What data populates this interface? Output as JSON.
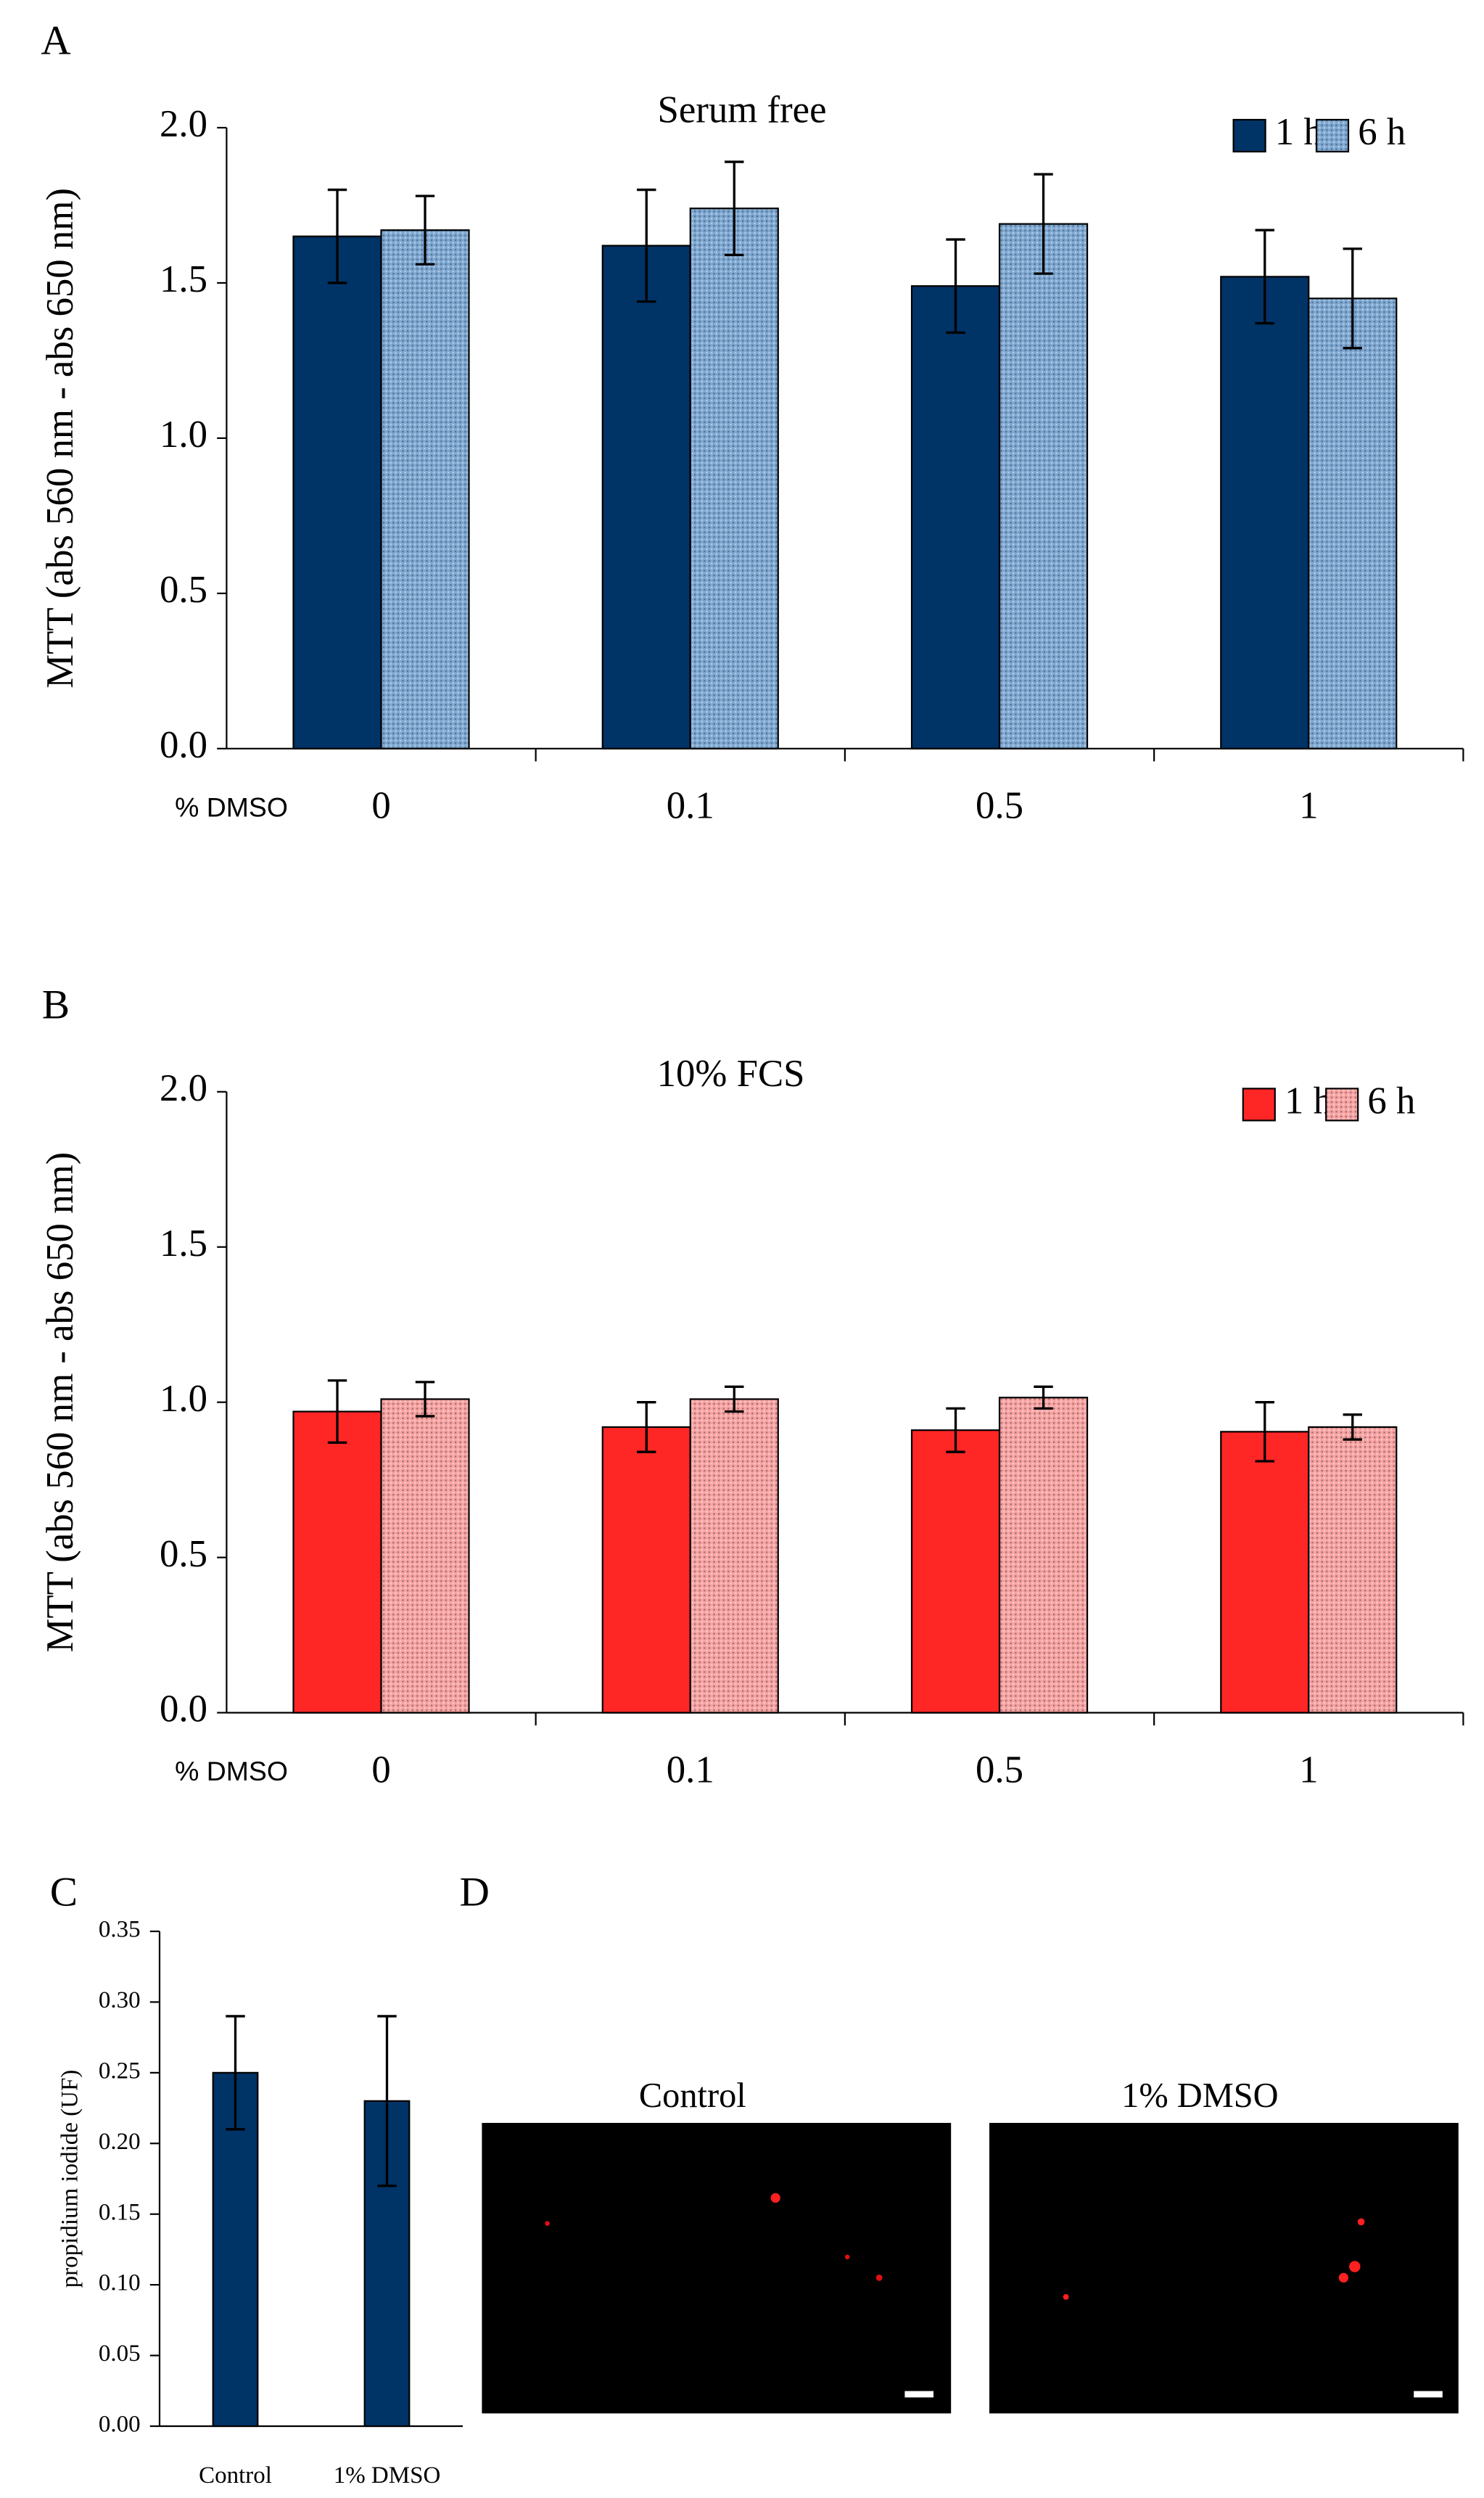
{
  "chart_data": [
    {
      "type": "bar",
      "label": "A",
      "title": "Serum free",
      "ylabel": "MTT (abs 560 nm - abs 650 nm)",
      "xlabel": "% DMSO",
      "categories": [
        "0",
        "0.1",
        "0.5",
        "1"
      ],
      "series": [
        {
          "name": "1 h",
          "color": "#003366",
          "values": [
            1.65,
            1.62,
            1.49,
            1.52
          ],
          "errors": [
            0.15,
            0.18,
            0.15,
            0.15
          ]
        },
        {
          "name": "6 h",
          "color": "#7ea8d2",
          "pattern": "dots",
          "values": [
            1.67,
            1.74,
            1.69,
            1.45
          ],
          "errors": [
            0.11,
            0.15,
            0.16,
            0.16
          ]
        }
      ],
      "ylim": [
        0,
        2
      ],
      "yticks": [
        {
          "value": 0,
          "label": "0.0"
        },
        {
          "value": 0.5,
          "label": "0.5"
        },
        {
          "value": 1,
          "label": "1.0"
        },
        {
          "value": 1.5,
          "label": "1.5"
        },
        {
          "value": 2,
          "label": "2.0"
        }
      ],
      "legend": "upper right",
      "grid": false
    },
    {
      "type": "bar",
      "label": "B",
      "title": "10% FCS",
      "ylabel": "MTT (abs 560 nm - abs 650 nm)",
      "xlabel": "% DMSO",
      "categories": [
        "0",
        "0.1",
        "0.5",
        "1"
      ],
      "series": [
        {
          "name": "1 h",
          "color": "#ff2626",
          "values": [
            0.97,
            0.92,
            0.91,
            0.905
          ],
          "errors": [
            0.1,
            0.08,
            0.07,
            0.095
          ]
        },
        {
          "name": "6 h",
          "color": "#f7a3a3",
          "pattern": "dots",
          "values": [
            1.01,
            1.01,
            1.015,
            0.92
          ],
          "errors": [
            0.055,
            0.04,
            0.035,
            0.04
          ]
        }
      ],
      "ylim": [
        0,
        2
      ],
      "yticks": [
        {
          "value": 0,
          "label": "0.0"
        },
        {
          "value": 0.5,
          "label": "0.5"
        },
        {
          "value": 1,
          "label": "1.0"
        },
        {
          "value": 1.5,
          "label": "1.5"
        },
        {
          "value": 2,
          "label": "2.0"
        }
      ],
      "legend": "upper right",
      "grid": false
    },
    {
      "type": "bar",
      "label": "C",
      "ylabel": "propidium iodide (UF)",
      "categories": [
        "Control",
        "1% DMSO"
      ],
      "series": [
        {
          "color": "#003366",
          "values": [
            0.25,
            0.23
          ],
          "errors": [
            0.04,
            0.06
          ]
        }
      ],
      "ylim": [
        0,
        0.35
      ],
      "yticks": [
        {
          "value": 0,
          "label": "0.00"
        },
        {
          "value": 0.05,
          "label": "0.05"
        },
        {
          "value": 0.1,
          "label": "0.10"
        },
        {
          "value": 0.15,
          "label": "0.15"
        },
        {
          "value": 0.2,
          "label": "0.20"
        },
        {
          "value": 0.25,
          "label": "0.25"
        },
        {
          "value": 0.3,
          "label": "0.30"
        },
        {
          "value": 0.35,
          "label": "0.35"
        }
      ],
      "grid": false
    }
  ],
  "images": {
    "label": "D",
    "panels": [
      {
        "title": "Control"
      },
      {
        "title": "1% DMSO"
      }
    ]
  }
}
